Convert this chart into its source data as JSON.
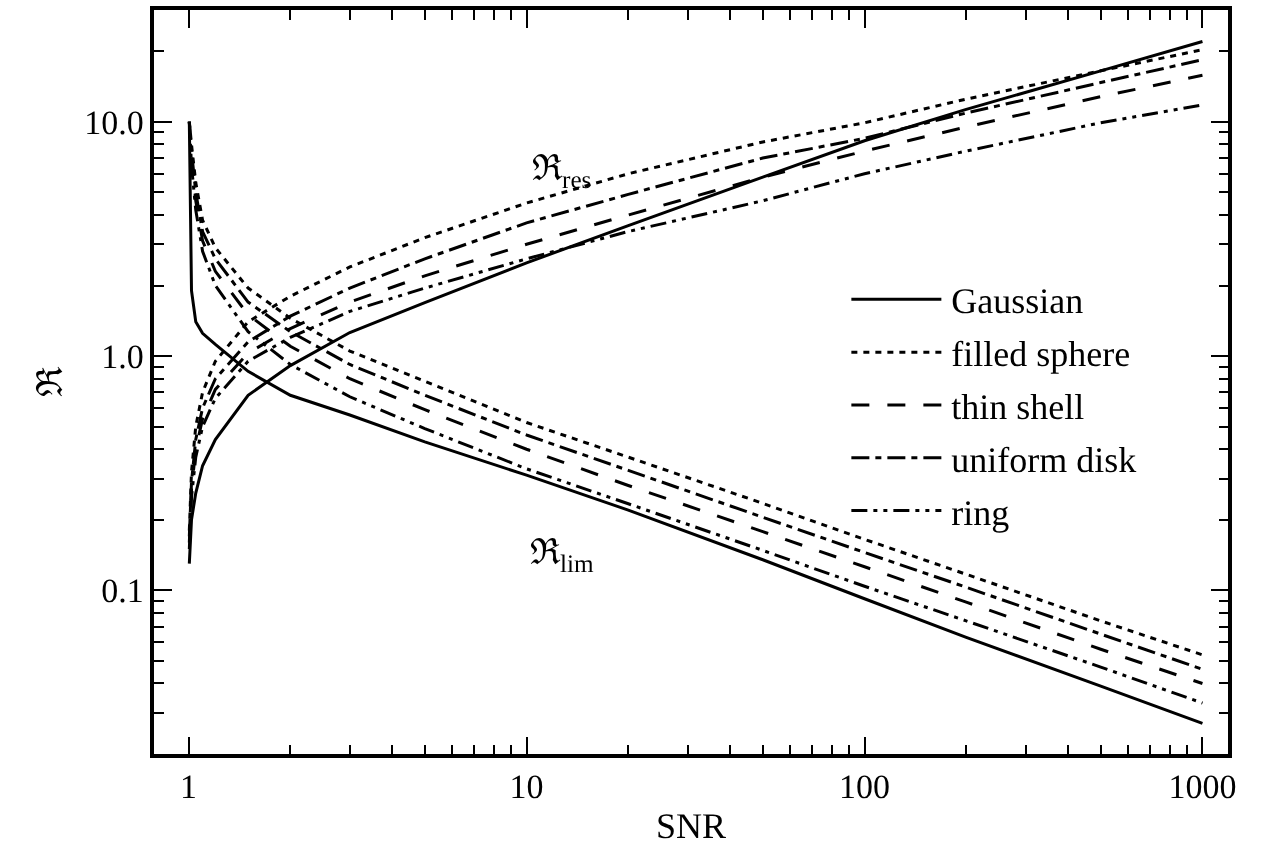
{
  "chart_data": {
    "type": "line",
    "xlabel": "SNR",
    "ylabel": "ℜ",
    "log": "xy",
    "legend": "right",
    "marker": "none",
    "xlim": [
      0.79,
      1190.0
    ],
    "ylim": [
      0.02,
      30
    ],
    "xticks": [
      1,
      10,
      100,
      1000,
      {
        "value": 2,
        "label": null
      },
      {
        "value": 3,
        "label": null
      },
      {
        "value": 4,
        "label": null
      },
      {
        "value": 5,
        "label": null
      },
      {
        "value": 6,
        "label": null
      },
      {
        "value": 7,
        "label": null
      },
      {
        "value": 8,
        "label": null
      },
      {
        "value": 9,
        "label": null
      },
      {
        "value": 20,
        "label": null
      },
      {
        "value": 30,
        "label": null
      },
      {
        "value": 40,
        "label": null
      },
      {
        "value": 50,
        "label": null
      },
      {
        "value": 60,
        "label": null
      },
      {
        "value": 70,
        "label": null
      },
      {
        "value": 80,
        "label": null
      },
      {
        "value": 90,
        "label": null
      },
      {
        "value": 200,
        "label": null
      },
      {
        "value": 300,
        "label": null
      },
      {
        "value": 400,
        "label": null
      },
      {
        "value": 500,
        "label": null
      },
      {
        "value": 600,
        "label": null
      },
      {
        "value": 700,
        "label": null
      },
      {
        "value": 800,
        "label": null
      },
      {
        "value": 900,
        "label": null
      }
    ],
    "yticks": [
      {
        "value": 0.1,
        "label": "0.1"
      },
      {
        "value": 1,
        "label": "1.0"
      },
      {
        "value": 10,
        "label": "10.0"
      },
      {
        "value": 0.03,
        "label": null
      },
      {
        "value": 0.04,
        "label": null
      },
      {
        "value": 0.05,
        "label": null
      },
      {
        "value": 0.06,
        "label": null
      },
      {
        "value": 0.07,
        "label": null
      },
      {
        "value": 0.08,
        "label": null
      },
      {
        "value": 0.09,
        "label": null
      },
      {
        "value": 0.2,
        "label": null
      },
      {
        "value": 0.3,
        "label": null
      },
      {
        "value": 0.4,
        "label": null
      },
      {
        "value": 0.5,
        "label": null
      },
      {
        "value": 0.6,
        "label": null
      },
      {
        "value": 0.7,
        "label": null
      },
      {
        "value": 0.8,
        "label": null
      },
      {
        "value": 0.9,
        "label": null
      },
      {
        "value": 2,
        "label": null
      },
      {
        "value": 3,
        "label": null
      },
      {
        "value": 4,
        "label": null
      },
      {
        "value": 5,
        "label": null
      },
      {
        "value": 6,
        "label": null
      },
      {
        "value": 7,
        "label": null
      },
      {
        "value": 8,
        "label": null
      },
      {
        "value": 9,
        "label": null
      },
      {
        "value": 20,
        "label": null
      }
    ],
    "x": [
      1.005,
      1.02,
      1.05,
      1.1,
      1.2,
      1.5,
      2,
      3,
      5,
      10,
      20,
      50,
      100,
      200,
      500,
      1000
    ],
    "annotations": [
      "ℜ$_{res}$",
      "ℜ$_{lim}$"
    ],
    "series": [
      {
        "name": "Gaussian",
        "color": "#000000",
        "line_style": "solid",
        "values": [
          0.13,
          0.2,
          0.26,
          0.34,
          0.44,
          0.68,
          0.91,
          1.26,
          1.69,
          2.5,
          3.6,
          5.8,
          8.3,
          11.3,
          16.5,
          22
        ]
      },
      {
        "name": "filled sphere",
        "color": "#000000",
        "line_style": "dotted",
        "values": [
          0.18,
          0.32,
          0.5,
          0.7,
          0.95,
          1.4,
          1.8,
          2.4,
          3.2,
          4.5,
          6.0,
          8.2,
          9.9,
          12.5,
          16.5,
          20.3
        ]
      },
      {
        "name": "thin shell",
        "color": "#000000",
        "line_style": "dashed",
        "values": [
          0.16,
          0.27,
          0.4,
          0.54,
          0.72,
          1.03,
          1.31,
          1.7,
          2.2,
          3.0,
          4.0,
          5.8,
          7.5,
          9.5,
          12.8,
          15.8
        ]
      },
      {
        "name": "uniform disk",
        "color": "#000000",
        "line_style": "dashdot",
        "values": [
          0.17,
          0.29,
          0.44,
          0.6,
          0.8,
          1.15,
          1.48,
          1.95,
          2.6,
          3.7,
          4.9,
          7.0,
          8.5,
          10.9,
          14.7,
          18.4
        ]
      },
      {
        "name": "ring",
        "color": "#000000",
        "line_style": "dashdotdot",
        "values": [
          0.15,
          0.25,
          0.37,
          0.5,
          0.66,
          0.95,
          1.2,
          1.55,
          1.95,
          2.6,
          3.4,
          4.6,
          6.0,
          7.5,
          9.9,
          11.8
        ]
      },
      {
        "color": "#000000",
        "line_style": "solid",
        "values": [
          10,
          1.9,
          1.4,
          1.25,
          1.12,
          0.86,
          0.68,
          0.56,
          0.43,
          0.31,
          0.22,
          0.135,
          0.092,
          0.063,
          0.039,
          0.027
        ]
      },
      {
        "color": "#000000",
        "line_style": "dotted",
        "values": [
          10,
          8,
          5.5,
          3.8,
          2.9,
          1.95,
          1.45,
          1.05,
          0.78,
          0.52,
          0.37,
          0.235,
          0.165,
          0.117,
          0.074,
          0.053
        ]
      },
      {
        "color": "#000000",
        "line_style": "dashed",
        "values": [
          10,
          7,
          4.6,
          3.1,
          2.3,
          1.5,
          1.1,
          0.8,
          0.59,
          0.4,
          0.28,
          0.178,
          0.126,
          0.089,
          0.056,
          0.04
        ]
      },
      {
        "color": "#000000",
        "line_style": "dashdot",
        "values": [
          10,
          7.5,
          5,
          3.4,
          2.6,
          1.7,
          1.27,
          0.92,
          0.68,
          0.46,
          0.325,
          0.205,
          0.145,
          0.103,
          0.065,
          0.046
        ]
      },
      {
        "color": "#000000",
        "line_style": "dashdotdot",
        "values": [
          10,
          6.5,
          4.2,
          2.8,
          2.0,
          1.27,
          0.92,
          0.67,
          0.49,
          0.33,
          0.234,
          0.148,
          0.104,
          0.074,
          0.047,
          0.033
        ]
      }
    ]
  }
}
